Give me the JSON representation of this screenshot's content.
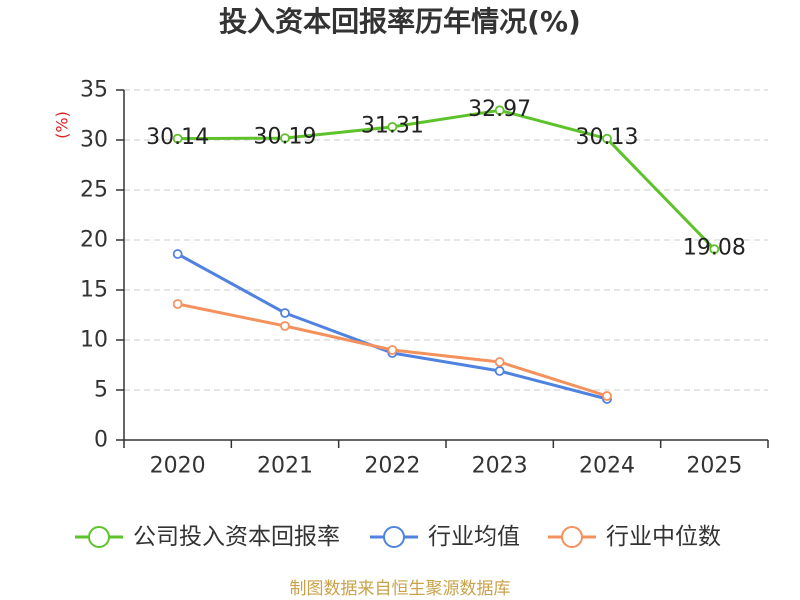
{
  "chart_data": {
    "type": "line",
    "title": "投入资本回报率历年情况(%)",
    "ylabel": "(%)",
    "categories": [
      "2020",
      "2021",
      "2022",
      "2023",
      "2024",
      "2025"
    ],
    "ylim": [
      0,
      35
    ],
    "yticks": [
      0,
      5,
      10,
      15,
      20,
      25,
      30,
      35
    ],
    "grid": true,
    "legend": "bottom",
    "series": [
      {
        "name": "公司投入资本回报率",
        "color": "#5ec22a",
        "values": [
          30.14,
          30.19,
          31.31,
          32.97,
          30.13,
          19.08
        ],
        "show_labels": true
      },
      {
        "name": "行业均值",
        "color": "#5083e0",
        "values": [
          18.6,
          12.7,
          8.7,
          6.9,
          4.1,
          null
        ],
        "show_labels": false
      },
      {
        "name": "行业中位数",
        "color": "#f5915c",
        "values": [
          13.6,
          11.4,
          9.0,
          7.8,
          4.4,
          null
        ],
        "show_labels": false
      }
    ]
  },
  "footer": "制图数据来自恒生聚源数据库"
}
